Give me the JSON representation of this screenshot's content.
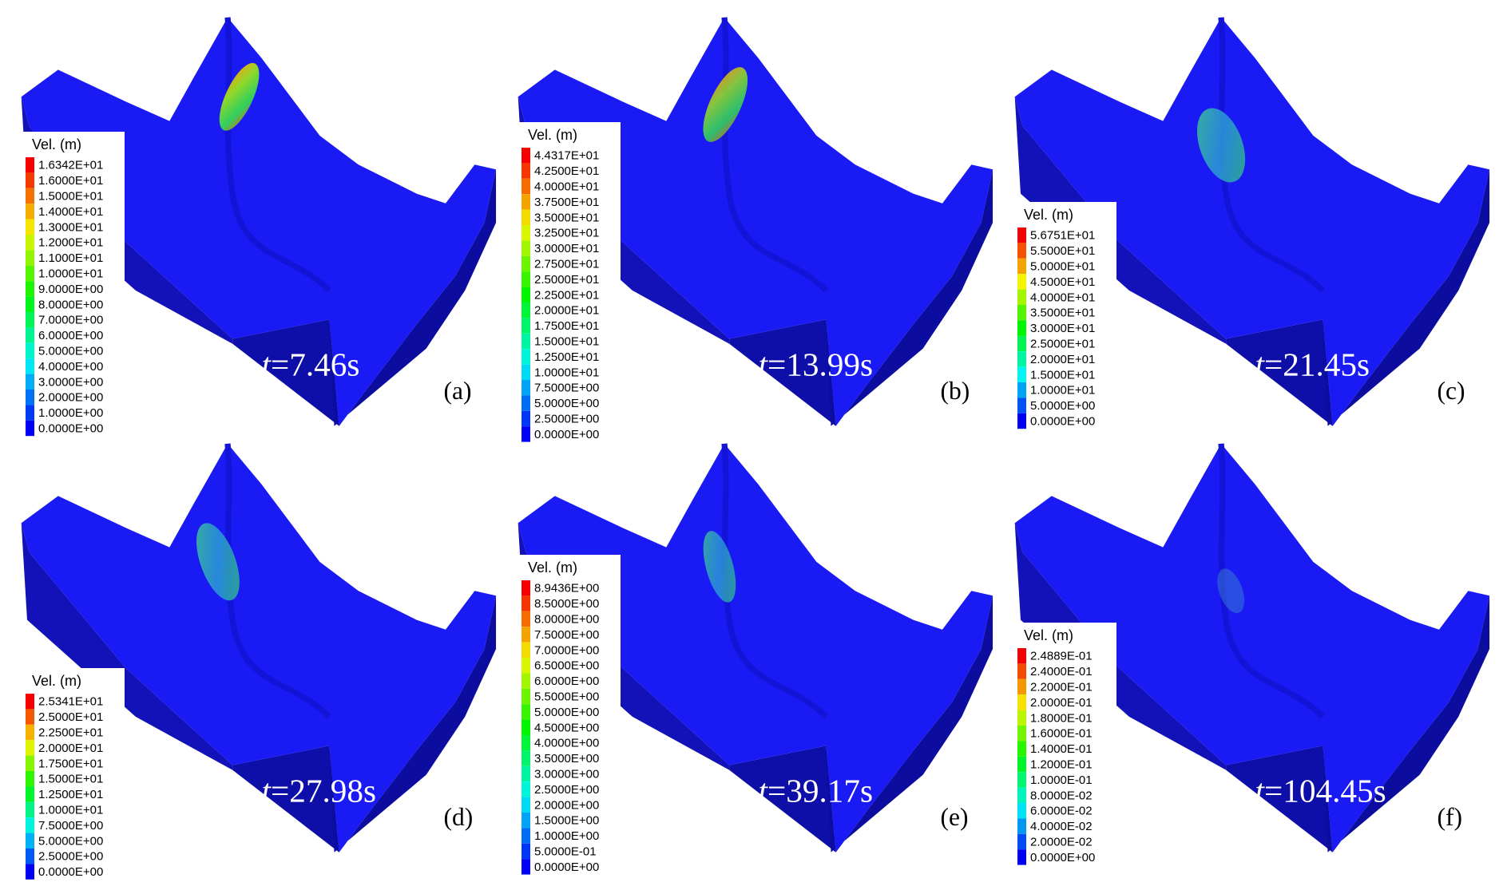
{
  "panels": [
    {
      "label": "(a)",
      "time": {
        "symbol": "t",
        "value": "=7.46s"
      },
      "legend": {
        "title": "Vel. (m)",
        "values": [
          "1.6342E+01",
          "1.6000E+01",
          "1.5000E+01",
          "1.4000E+01",
          "1.3000E+01",
          "1.2000E+01",
          "1.1000E+01",
          "1.0000E+01",
          "9.0000E+00",
          "8.0000E+00",
          "7.0000E+00",
          "6.0000E+00",
          "5.0000E+00",
          "4.0000E+00",
          "3.0000E+00",
          "2.0000E+00",
          "1.0000E+00",
          "0.0000E+00"
        ]
      }
    },
    {
      "label": "(b)",
      "time": {
        "symbol": "t",
        "value": "=13.99s"
      },
      "legend": {
        "title": "Vel. (m)",
        "values": [
          "4.4317E+01",
          "4.2500E+01",
          "4.0000E+01",
          "3.7500E+01",
          "3.5000E+01",
          "3.2500E+01",
          "3.0000E+01",
          "2.7500E+01",
          "2.5000E+01",
          "2.2500E+01",
          "2.0000E+01",
          "1.7500E+01",
          "1.5000E+01",
          "1.2500E+01",
          "1.0000E+01",
          "7.5000E+00",
          "5.0000E+00",
          "2.5000E+00",
          "0.0000E+00"
        ]
      }
    },
    {
      "label": "(c)",
      "time": {
        "symbol": "t",
        "value": "=21.45s"
      },
      "legend": {
        "title": "Vel. (m)",
        "values": [
          "5.6751E+01",
          "5.5000E+01",
          "5.0000E+01",
          "4.5000E+01",
          "4.0000E+01",
          "3.5000E+01",
          "3.0000E+01",
          "2.5000E+01",
          "2.0000E+01",
          "1.5000E+01",
          "1.0000E+01",
          "5.0000E+00",
          "0.0000E+00"
        ]
      }
    },
    {
      "label": "(d)",
      "time": {
        "symbol": "t",
        "value": "=27.98s"
      },
      "legend": {
        "title": "Vel. (m)",
        "values": [
          "2.5341E+01",
          "2.5000E+01",
          "2.2500E+01",
          "2.0000E+01",
          "1.7500E+01",
          "1.5000E+01",
          "1.2500E+01",
          "1.0000E+01",
          "7.5000E+00",
          "5.0000E+00",
          "2.5000E+00",
          "0.0000E+00"
        ]
      }
    },
    {
      "label": "(e)",
      "time": {
        "symbol": "t",
        "value": "=39.17s"
      },
      "legend": {
        "title": "Vel. (m)",
        "values": [
          "8.9436E+00",
          "8.5000E+00",
          "8.0000E+00",
          "7.5000E+00",
          "7.0000E+00",
          "6.5000E+00",
          "6.0000E+00",
          "5.5000E+00",
          "5.0000E+00",
          "4.5000E+00",
          "4.0000E+00",
          "3.5000E+00",
          "3.0000E+00",
          "2.5000E+00",
          "2.0000E+00",
          "1.5000E+00",
          "1.0000E+00",
          "5.0000E-01",
          "0.0000E+00"
        ]
      }
    },
    {
      "label": "(f)",
      "time": {
        "symbol": "t",
        "value": "=104.45s"
      },
      "legend": {
        "title": "Vel. (m)",
        "values": [
          "2.4889E-01",
          "2.4000E-01",
          "2.2000E-01",
          "2.0000E-01",
          "1.8000E-01",
          "1.6000E-01",
          "1.4000E-01",
          "1.2000E-01",
          "1.0000E-01",
          "8.0000E-02",
          "6.0000E-02",
          "4.0000E-02",
          "2.0000E-02",
          "0.0000E+00"
        ]
      }
    }
  ]
}
